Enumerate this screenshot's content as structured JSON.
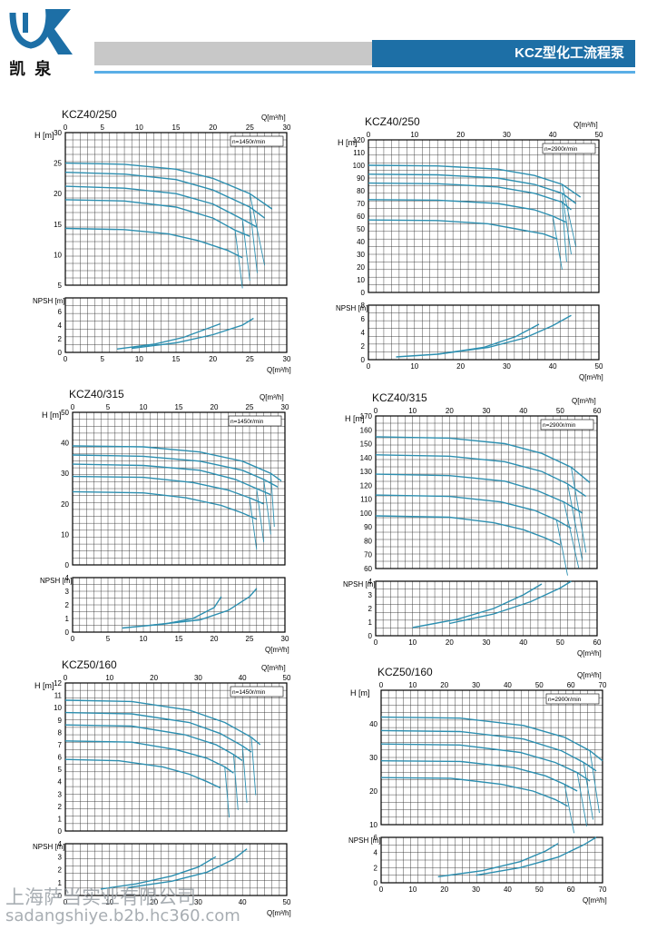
{
  "header": {
    "logo_text": "凯 泉",
    "title": "KCZ型化工流程泵",
    "accent_color": "#1d6fa6",
    "line_color": "#5aaee6"
  },
  "watermark": {
    "text": "上海萨当实业有限公司",
    "url": "sadangshiye.b2b.hc360.com"
  },
  "chart_data": [
    {
      "type": "line",
      "title": "KCZ40/250",
      "speed": "n=1450r/min",
      "xlabel": "Q[m³/h]",
      "ylabel_h": "H [m]",
      "ylabel_npsh": "NPSH [m]",
      "xlim": [
        0,
        30
      ],
      "xticks": [
        0,
        5,
        10,
        15,
        20,
        25,
        30
      ],
      "h_ylim": [
        5,
        30
      ],
      "h_yticks": [
        5,
        10,
        15,
        20,
        25,
        30
      ],
      "npsh_ylim": [
        0,
        8
      ],
      "npsh_yticks": [
        0,
        2,
        4,
        6
      ],
      "h_series": [
        {
          "x": [
            0,
            8,
            15,
            20,
            25,
            28
          ],
          "y": [
            25,
            24.8,
            24,
            22.5,
            20,
            17.5
          ]
        },
        {
          "x": [
            0,
            8,
            15,
            20,
            25,
            27
          ],
          "y": [
            23.5,
            23.2,
            22.3,
            20.6,
            17.8,
            16
          ]
        },
        {
          "x": [
            0,
            8,
            15,
            20,
            24,
            26
          ],
          "y": [
            21.2,
            20.9,
            20,
            18.3,
            15.8,
            14.5
          ]
        },
        {
          "x": [
            0,
            8,
            15,
            20,
            23,
            25
          ],
          "y": [
            19,
            18.8,
            17.8,
            16,
            14,
            13
          ]
        },
        {
          "x": [
            0,
            8,
            14,
            18,
            22,
            24
          ],
          "y": [
            14.3,
            14.1,
            13.4,
            12.3,
            10.7,
            9.5
          ]
        }
      ],
      "npsh_series": [
        {
          "x": [
            7,
            12,
            16,
            19,
            21
          ],
          "y": [
            0.5,
            1.2,
            2.2,
            3.4,
            4.2
          ]
        },
        {
          "x": [
            9,
            15,
            20,
            24,
            25.5
          ],
          "y": [
            0.6,
            1.4,
            2.6,
            4.0,
            5.0
          ]
        }
      ]
    },
    {
      "type": "line",
      "title": "KCZ40/250",
      "speed": "n=2900r/min",
      "xlabel": "Q[m³/h]",
      "ylabel_h": "H [m]",
      "ylabel_npsh": "NPSH [m]",
      "xlim": [
        0,
        50
      ],
      "xticks": [
        0,
        10,
        20,
        30,
        40,
        50
      ],
      "h_ylim": [
        0,
        120
      ],
      "h_yticks": [
        0,
        10,
        20,
        30,
        40,
        50,
        60,
        70,
        80,
        90,
        100,
        110,
        120
      ],
      "npsh_ylim": [
        0,
        8
      ],
      "npsh_yticks": [
        0,
        2,
        4,
        6,
        8
      ],
      "h_series": [
        {
          "x": [
            0,
            15,
            28,
            36,
            42,
            46
          ],
          "y": [
            100,
            99.5,
            97,
            92,
            85,
            75
          ]
        },
        {
          "x": [
            0,
            15,
            28,
            36,
            42,
            45
          ],
          "y": [
            93,
            92.5,
            90,
            85,
            78,
            70
          ]
        },
        {
          "x": [
            0,
            15,
            28,
            36,
            42,
            44
          ],
          "y": [
            86,
            85.5,
            83,
            78,
            71,
            65
          ]
        },
        {
          "x": [
            0,
            15,
            28,
            36,
            40,
            43
          ],
          "y": [
            73,
            72.6,
            70,
            65,
            60,
            55
          ]
        },
        {
          "x": [
            0,
            15,
            26,
            32,
            38,
            41
          ],
          "y": [
            57,
            56.6,
            54,
            50,
            46,
            42
          ]
        }
      ],
      "npsh_series": [
        {
          "x": [
            6,
            15,
            25,
            32,
            37
          ],
          "y": [
            0.4,
            0.8,
            1.8,
            3.4,
            5.2
          ]
        },
        {
          "x": [
            15,
            26,
            34,
            40,
            44
          ],
          "y": [
            0.8,
            1.8,
            3.2,
            5.0,
            6.5
          ]
        }
      ]
    },
    {
      "type": "line",
      "title": "KCZ40/315",
      "speed": "n=1450r/min",
      "xlabel": "Q[m³/h]",
      "ylabel_h": "H [m]",
      "ylabel_npsh": "NPSH [m]",
      "xlim": [
        0,
        30
      ],
      "xticks": [
        0,
        5,
        10,
        15,
        20,
        25,
        30
      ],
      "h_ylim": [
        0,
        50
      ],
      "h_yticks": [
        0,
        10,
        20,
        30,
        40,
        50
      ],
      "npsh_ylim": [
        0,
        4
      ],
      "npsh_yticks": [
        0,
        1,
        2,
        3,
        4
      ],
      "h_series": [
        {
          "x": [
            0,
            10,
            18,
            24,
            28,
            29.5
          ],
          "y": [
            39,
            38.7,
            37,
            34,
            30,
            27.5
          ]
        },
        {
          "x": [
            0,
            10,
            18,
            24,
            27,
            29
          ],
          "y": [
            36,
            35.6,
            34,
            31,
            28,
            25.5
          ]
        },
        {
          "x": [
            0,
            10,
            18,
            23,
            26,
            28
          ],
          "y": [
            33,
            32.6,
            31,
            28,
            25,
            23
          ]
        },
        {
          "x": [
            0,
            10,
            17,
            22,
            25,
            27
          ],
          "y": [
            29,
            28.7,
            27,
            24.5,
            22,
            20
          ]
        },
        {
          "x": [
            0,
            10,
            16,
            21,
            24,
            26
          ],
          "y": [
            24,
            23.6,
            22,
            19.5,
            17,
            15
          ]
        }
      ],
      "npsh_series": [
        {
          "x": [
            7,
            13,
            17,
            20,
            21
          ],
          "y": [
            0.3,
            0.6,
            1.0,
            1.8,
            2.6
          ]
        },
        {
          "x": [
            11,
            18,
            22,
            25,
            26
          ],
          "y": [
            0.5,
            0.9,
            1.6,
            2.6,
            3.2
          ]
        }
      ]
    },
    {
      "type": "line",
      "title": "KCZ40/315",
      "speed": "n=2900r/min",
      "xlabel": "Q[m³/h]",
      "ylabel_h": "H [m]",
      "ylabel_npsh": "NPSH [m]",
      "xlim": [
        0,
        60
      ],
      "xticks": [
        0,
        10,
        20,
        30,
        40,
        50,
        60
      ],
      "h_ylim": [
        60,
        170
      ],
      "h_yticks": [
        60,
        70,
        80,
        90,
        100,
        110,
        120,
        130,
        140,
        150,
        160,
        170
      ],
      "npsh_ylim": [
        0,
        4
      ],
      "npsh_yticks": [
        0,
        1,
        2,
        3,
        4
      ],
      "h_series": [
        {
          "x": [
            0,
            20,
            35,
            45,
            53,
            58
          ],
          "y": [
            155,
            154,
            150,
            143,
            133,
            122
          ]
        },
        {
          "x": [
            0,
            20,
            35,
            45,
            52,
            57
          ],
          "y": [
            142,
            141,
            137,
            130,
            121,
            112
          ]
        },
        {
          "x": [
            0,
            20,
            35,
            44,
            51,
            56
          ],
          "y": [
            128,
            127,
            123,
            116,
            108,
            100
          ]
        },
        {
          "x": [
            0,
            20,
            34,
            43,
            49,
            53
          ],
          "y": [
            113,
            112,
            108,
            102,
            95,
            89
          ]
        },
        {
          "x": [
            0,
            20,
            32,
            40,
            46,
            50
          ],
          "y": [
            98,
            97,
            93,
            88,
            82,
            77
          ]
        }
      ],
      "npsh_series": [
        {
          "x": [
            10,
            22,
            32,
            40,
            45
          ],
          "y": [
            0.6,
            1.2,
            2.0,
            3.0,
            3.8
          ]
        },
        {
          "x": [
            20,
            32,
            42,
            50,
            53
          ],
          "y": [
            0.9,
            1.6,
            2.5,
            3.5,
            4.0
          ]
        }
      ]
    },
    {
      "type": "line",
      "title": "KCZ50/160",
      "speed": "n=1450r/min",
      "xlabel": "Q[m³/h]",
      "ylabel_h": "H [m]",
      "ylabel_npsh": "NPSH [m]",
      "xlim": [
        0,
        50
      ],
      "xticks": [
        0,
        10,
        20,
        30,
        40,
        50
      ],
      "h_ylim": [
        0,
        12
      ],
      "h_yticks": [
        0,
        1,
        2,
        3,
        4,
        5,
        6,
        7,
        8,
        9,
        10,
        11,
        12
      ],
      "npsh_ylim": [
        0,
        4
      ],
      "npsh_yticks": [
        0,
        1,
        2,
        3,
        4
      ],
      "h_series": [
        {
          "x": [
            0,
            15,
            28,
            36,
            42,
            44
          ],
          "y": [
            10.6,
            10.5,
            9.8,
            8.8,
            7.6,
            7
          ]
        },
        {
          "x": [
            0,
            15,
            28,
            35,
            40,
            42
          ],
          "y": [
            9.6,
            9.5,
            8.8,
            7.9,
            6.9,
            6.4
          ]
        },
        {
          "x": [
            0,
            15,
            27,
            34,
            38,
            40
          ],
          "y": [
            8.6,
            8.5,
            7.8,
            7.0,
            6.2,
            5.7
          ]
        },
        {
          "x": [
            0,
            15,
            25,
            32,
            36,
            38
          ],
          "y": [
            7.3,
            7.2,
            6.6,
            5.9,
            5.2,
            4.7
          ]
        },
        {
          "x": [
            0,
            12,
            22,
            28,
            32,
            35
          ],
          "y": [
            5.8,
            5.7,
            5.2,
            4.6,
            4.0,
            3.5
          ]
        }
      ],
      "npsh_series": [
        {
          "x": [
            8,
            16,
            24,
            30,
            34
          ],
          "y": [
            0.5,
            0.9,
            1.5,
            2.2,
            3.0
          ]
        },
        {
          "x": [
            14,
            24,
            32,
            38,
            41
          ],
          "y": [
            0.6,
            1.1,
            1.8,
            2.8,
            3.6
          ]
        }
      ]
    },
    {
      "type": "line",
      "title": "KCZ50/160",
      "speed": "n=2900r/min",
      "xlabel": "Q[m³/h]",
      "ylabel_h": "H [m]",
      "ylabel_npsh": "NPSH [m]",
      "xlim": [
        0,
        70
      ],
      "xticks": [
        0,
        10,
        20,
        30,
        40,
        50,
        60,
        70
      ],
      "h_ylim": [
        10,
        50
      ],
      "h_yticks": [
        10,
        20,
        30,
        40
      ],
      "npsh_ylim": [
        0,
        6
      ],
      "npsh_yticks": [
        0,
        2,
        4,
        6
      ],
      "h_series": [
        {
          "x": [
            0,
            25,
            45,
            58,
            66,
            70
          ],
          "y": [
            42,
            41.7,
            39.5,
            36,
            32,
            29
          ]
        },
        {
          "x": [
            0,
            25,
            45,
            57,
            64,
            68
          ],
          "y": [
            38,
            37.7,
            35.5,
            32,
            28.5,
            26
          ]
        },
        {
          "x": [
            0,
            25,
            44,
            55,
            62,
            66
          ],
          "y": [
            34,
            33.7,
            31.5,
            28.5,
            25.5,
            23
          ]
        },
        {
          "x": [
            0,
            25,
            42,
            52,
            58,
            62
          ],
          "y": [
            29,
            28.8,
            27,
            24.5,
            22,
            20
          ]
        },
        {
          "x": [
            0,
            22,
            38,
            48,
            55,
            59
          ],
          "y": [
            24,
            23.8,
            22,
            20,
            17.5,
            15.5
          ]
        }
      ],
      "npsh_series": [
        {
          "x": [
            18,
            32,
            44,
            52,
            56
          ],
          "y": [
            0.8,
            1.6,
            2.8,
            4.2,
            5.2
          ]
        },
        {
          "x": [
            30,
            44,
            56,
            64,
            68
          ],
          "y": [
            1.0,
            2.0,
            3.4,
            5.0,
            6.0
          ]
        }
      ]
    }
  ]
}
